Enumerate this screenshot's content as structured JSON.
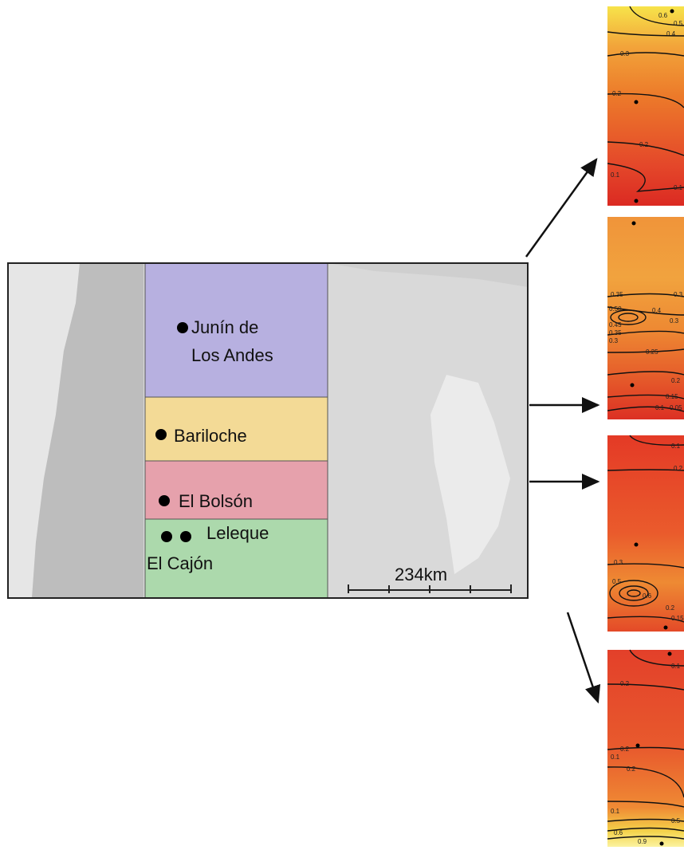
{
  "map": {
    "places": {
      "junin_1": "Junín de",
      "junin_2": "Los Andes",
      "bariloche": "Bariloche",
      "el_bolson": "El Bolsón",
      "leleque": "Leleque",
      "el_cajon": "El Cajón"
    },
    "scale": "234km"
  },
  "panels": [
    {
      "contour_labels": [
        "0.6",
        "0.5",
        "0.4",
        "0.3",
        "0.2",
        "0.2",
        "0.1",
        "0.1"
      ]
    },
    {
      "contour_labels": [
        "0.35",
        "0.3",
        "0.50",
        "0.4",
        "0.45",
        "0.3",
        "0.35",
        "0.3",
        "0.25",
        "0.2",
        "0.15",
        "0.1",
        "0.05"
      ]
    },
    {
      "contour_labels": [
        "0.1",
        "0.2",
        "0.3",
        "0.5",
        "0.6",
        "0.2",
        "0.15"
      ]
    },
    {
      "contour_labels": [
        "0.1",
        "0.2",
        "0.2",
        "0.1",
        "0.2",
        "0.1",
        "0.5",
        "0.6",
        "0.9"
      ]
    }
  ]
}
